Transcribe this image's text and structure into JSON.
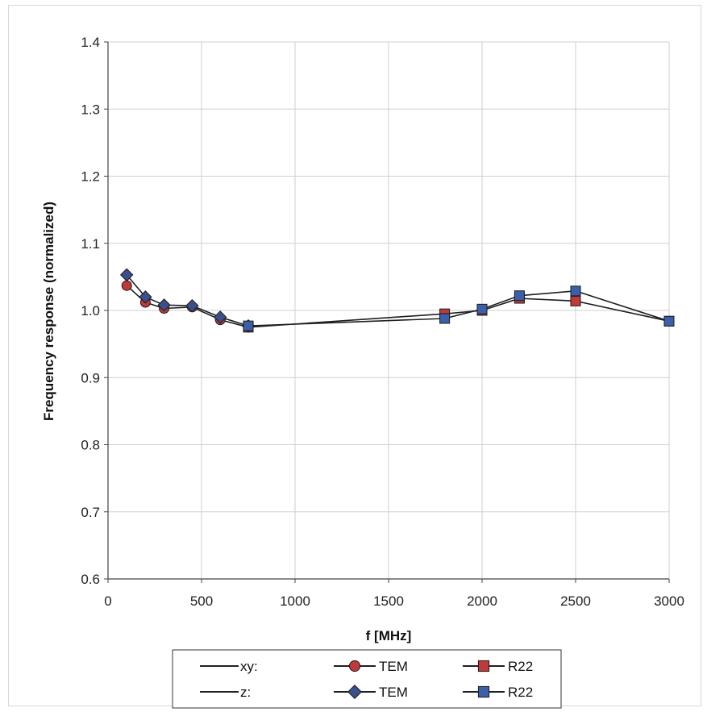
{
  "chart_data": {
    "type": "line",
    "title": "",
    "xlabel": "f [MHz]",
    "ylabel": "Frequency response (normalized)",
    "xlim": [
      0,
      3000
    ],
    "ylim": [
      0.6,
      1.4
    ],
    "xticks": [
      0,
      500,
      1000,
      1500,
      2000,
      2500,
      3000
    ],
    "yticks": [
      0.6,
      0.7,
      0.8,
      0.9,
      1.0,
      1.1,
      1.2,
      1.3,
      1.4
    ],
    "xtick_labels": [
      "0",
      "500",
      "1000",
      "1500",
      "2000",
      "2500",
      "3000"
    ],
    "ytick_labels": [
      "0.6",
      "0.7",
      "0.8",
      "0.9",
      "1.0",
      "1.1",
      "1.2",
      "1.3",
      "1.4"
    ],
    "grid": true,
    "legend_position": "bottom",
    "legend": {
      "row1_label": "xy:",
      "row2_label": "z:",
      "entries": [
        {
          "series": 0,
          "label": "TEM"
        },
        {
          "series": 1,
          "label": "R22"
        },
        {
          "series": 2,
          "label": "TEM"
        },
        {
          "series": 3,
          "label": "R22"
        }
      ]
    },
    "series": [
      {
        "group": "xy:",
        "label": "TEM",
        "marker": "circle",
        "color": "#c0393b",
        "x": [
          100,
          200,
          300,
          450,
          600,
          750
        ],
        "y": [
          1.037,
          1.012,
          1.003,
          1.005,
          0.986,
          0.975
        ]
      },
      {
        "group": "xy:",
        "label": "R22",
        "marker": "square",
        "color": "#c0393b",
        "x": [
          750,
          1800,
          2000,
          2200,
          2500,
          3000
        ],
        "y": [
          0.975,
          0.995,
          1.0,
          1.018,
          1.014,
          0.984
        ]
      },
      {
        "group": "z:",
        "label": "TEM",
        "marker": "diamond",
        "color": "#3b4f8a",
        "x": [
          100,
          200,
          300,
          450,
          600,
          750
        ],
        "y": [
          1.053,
          1.02,
          1.008,
          1.007,
          0.99,
          0.977
        ]
      },
      {
        "group": "z:",
        "label": "R22",
        "marker": "square",
        "color": "#3b5fa8",
        "x": [
          750,
          1800,
          2000,
          2200,
          2500,
          3000
        ],
        "y": [
          0.977,
          0.988,
          1.002,
          1.022,
          1.029,
          0.984
        ]
      }
    ]
  }
}
